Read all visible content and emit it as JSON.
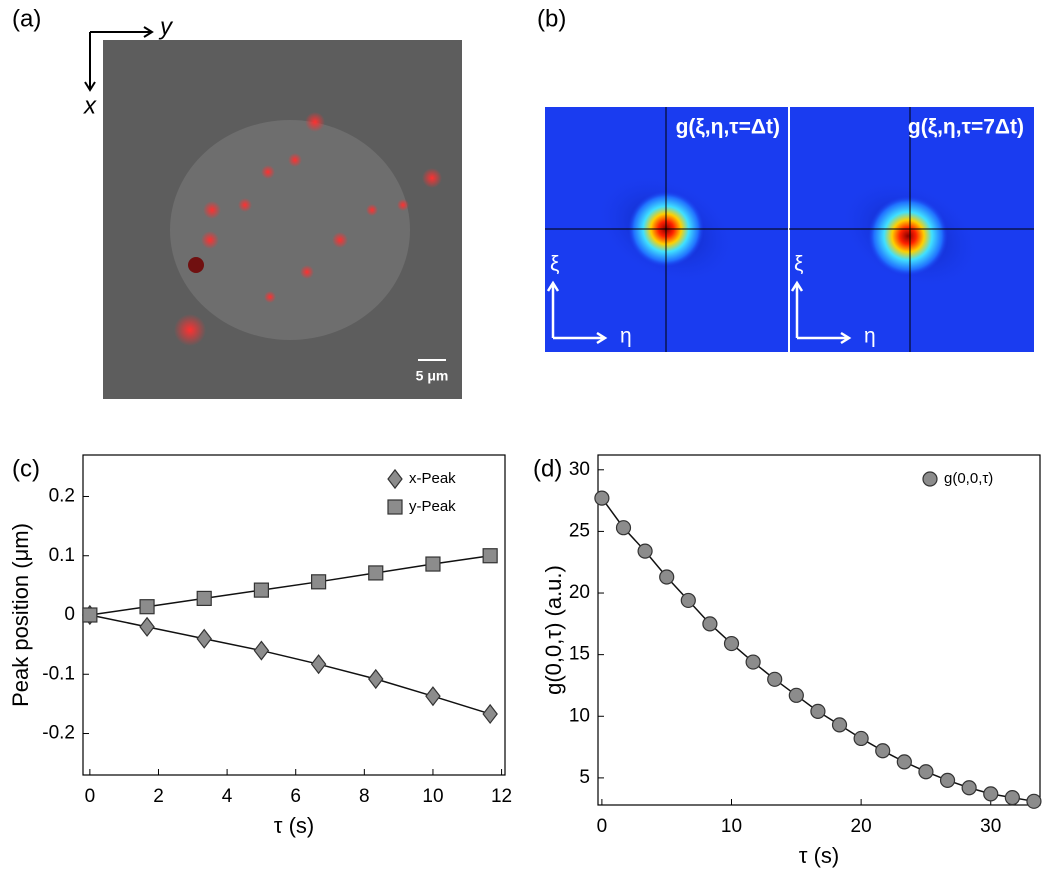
{
  "images": {
    "a": {
      "label": "(a)",
      "x_axis": "x",
      "y_axis": "y",
      "scale_bar": "5 μm"
    },
    "b": {
      "label": "(b)",
      "maps": [
        {
          "title": "g(ξ,η,τ=Δt)",
          "xi": "ξ",
          "eta": "η"
        },
        {
          "title": "g(ξ,η,τ=7Δt)",
          "xi": "ξ",
          "eta": "η"
        }
      ]
    }
  },
  "chart_data": [
    {
      "type": "scatter",
      "label": "(c)",
      "xlabel": "τ (s)",
      "ylabel": "Peak position (μm)",
      "x": [
        0,
        1.667,
        3.333,
        5,
        6.667,
        8.333,
        10,
        11.667
      ],
      "series": [
        {
          "name": "x-Peak",
          "color": "#8c8c8c",
          "marker": "diamond",
          "values": [
            0,
            -0.02,
            -0.04,
            -0.06,
            -0.083,
            -0.108,
            -0.137,
            -0.167
          ]
        },
        {
          "name": "y-Peak",
          "color": "#8c8c8c",
          "marker": "square",
          "values": [
            0,
            0.014,
            0.028,
            0.042,
            0.056,
            0.071,
            0.086,
            0.1
          ]
        }
      ],
      "fit_line": true,
      "legend": "upper right",
      "xlim": [
        -0.2,
        12.1
      ],
      "xticks": [
        0,
        2,
        4,
        6,
        8,
        10,
        12
      ],
      "ylim": [
        -0.27,
        0.27
      ],
      "yticks": [
        -0.2,
        -0.1,
        0,
        0.1,
        0.2
      ]
    },
    {
      "type": "scatter",
      "label": "(d)",
      "xlabel": "τ (s)",
      "ylabel": "g(0,0,τ) (a.u.)",
      "x": [
        0,
        1.667,
        3.333,
        5,
        6.667,
        8.333,
        10,
        11.667,
        13.333,
        15,
        16.667,
        18.333,
        20,
        21.667,
        23.333,
        25,
        26.667,
        28.333,
        30,
        31.667,
        33.333
      ],
      "series": [
        {
          "name": "g(0,0,τ)",
          "color": "#8c8c8c",
          "marker": "circle",
          "values": [
            27.7,
            25.3,
            23.4,
            21.3,
            19.4,
            17.5,
            15.9,
            14.4,
            13.0,
            11.7,
            10.4,
            9.3,
            8.2,
            7.2,
            6.3,
            5.5,
            4.8,
            4.2,
            3.7,
            3.4,
            3.1
          ]
        }
      ],
      "fit_line": true,
      "legend": "upper right",
      "xlim": [
        -0.3,
        33.8
      ],
      "xticks": [
        0,
        10,
        20,
        30
      ],
      "ylim": [
        2.8,
        31.2
      ],
      "yticks": [
        5,
        10,
        15,
        20,
        25,
        30
      ]
    }
  ]
}
